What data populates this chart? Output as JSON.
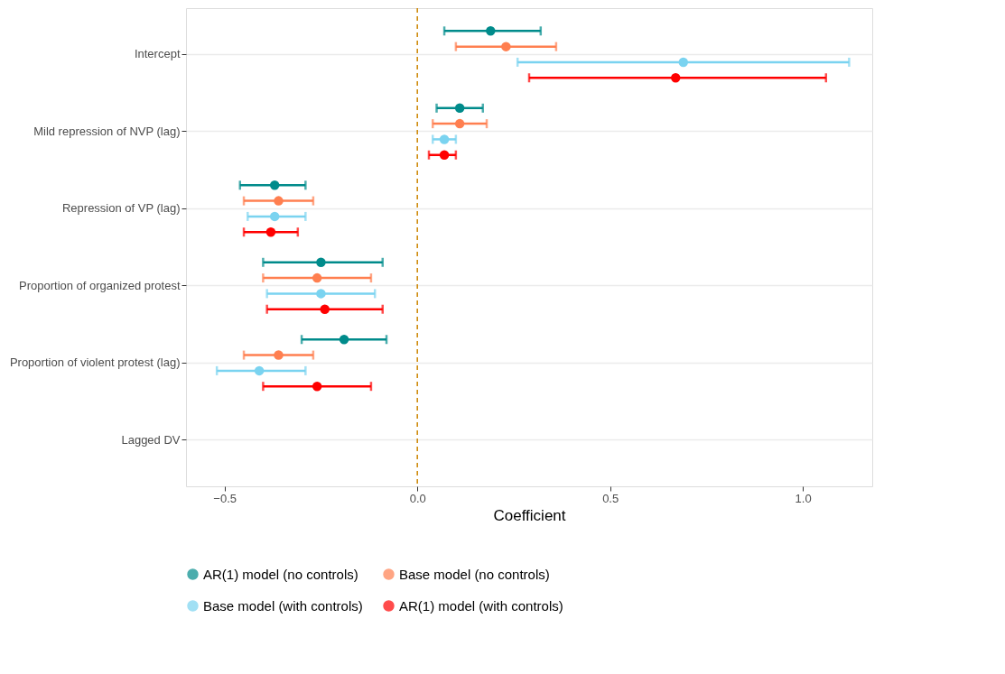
{
  "chart_data": {
    "type": "scatter",
    "orientation": "horizontal",
    "xlabel": "Coefficient",
    "categories": [
      "Intercept",
      "Mild repression of NVP (lag)",
      "Repression of VP (lag)",
      "Proportion of organized protest",
      "Proportion of violent protest (lag)",
      "Lagged DV"
    ],
    "series": [
      {
        "name": "AR(1) model (no controls)",
        "color": "#008b8b",
        "values": [
          0.19,
          0.11,
          -0.37,
          -0.25,
          -0.19,
          null
        ],
        "errors": [
          [
            0.07,
            0.32
          ],
          [
            0.05,
            0.17
          ],
          [
            -0.46,
            -0.29
          ],
          [
            -0.4,
            -0.09
          ],
          [
            -0.3,
            -0.08
          ],
          null
        ]
      },
      {
        "name": "Base model (no controls)",
        "color": "#ff7f50",
        "values": [
          0.23,
          0.11,
          -0.36,
          -0.26,
          -0.36,
          null
        ],
        "errors": [
          [
            0.1,
            0.36
          ],
          [
            0.04,
            0.18
          ],
          [
            -0.45,
            -0.27
          ],
          [
            -0.4,
            -0.12
          ],
          [
            -0.45,
            -0.27
          ],
          null
        ]
      },
      {
        "name": "Base model (with controls)",
        "color": "#7ad3f0",
        "values": [
          0.69,
          0.07,
          -0.37,
          -0.25,
          -0.41,
          null
        ],
        "errors": [
          [
            0.26,
            1.12
          ],
          [
            0.04,
            0.1
          ],
          [
            -0.44,
            -0.29
          ],
          [
            -0.39,
            -0.11
          ],
          [
            -0.52,
            -0.29
          ],
          null
        ]
      },
      {
        "name": "AR(1) model (with controls)",
        "color": "#ff0000",
        "values": [
          0.67,
          0.07,
          -0.38,
          -0.24,
          -0.26,
          null
        ],
        "errors": [
          [
            0.29,
            1.06
          ],
          [
            0.03,
            0.1
          ],
          [
            -0.45,
            -0.31
          ],
          [
            -0.39,
            -0.09
          ],
          [
            -0.4,
            -0.12
          ],
          null
        ]
      }
    ],
    "xlim": [
      -0.6,
      1.18
    ],
    "xticks": [
      {
        "value": -0.5,
        "label": "−0.5"
      },
      {
        "value": 0,
        "label": "0.0"
      },
      {
        "value": 0.5,
        "label": "0.5"
      },
      {
        "value": 1.0,
        "label": "1.0"
      }
    ],
    "ref_lines": [
      {
        "axis": "x",
        "value": 0,
        "color": "#cd8500",
        "line_style": "dashed"
      }
    ],
    "grid": "y",
    "legend": "bottom",
    "marker": "circle"
  }
}
